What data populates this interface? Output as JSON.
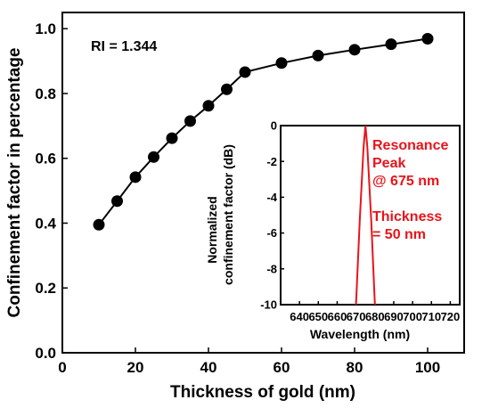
{
  "chart_data": [
    {
      "type": "line",
      "xlabel": "Thickness of gold (nm)",
      "ylabel": "Confinement factor in percentage",
      "xlim": [
        0,
        110
      ],
      "ylim": [
        0.0,
        1.05
      ],
      "xticks": [
        0,
        20,
        40,
        60,
        80,
        100
      ],
      "yticks": [
        0.0,
        0.2,
        0.4,
        0.6,
        0.8,
        1.0
      ],
      "xtick_labels": [
        "0",
        "20",
        "40",
        "60",
        "80",
        "100"
      ],
      "ytick_labels": [
        "0.0",
        "0.2",
        "0.4",
        "0.6",
        "0.8",
        "1.0"
      ],
      "annotation": "RI = 1.344",
      "series": [
        {
          "color": "#000000",
          "marker": "circle",
          "x": [
            10,
            15,
            20,
            25,
            30,
            35,
            40,
            45,
            50,
            60,
            70,
            80,
            90,
            100
          ],
          "y": [
            0.395,
            0.468,
            0.542,
            0.604,
            0.662,
            0.715,
            0.762,
            0.813,
            0.866,
            0.894,
            0.917,
            0.935,
            0.952,
            0.969
          ]
        }
      ]
    },
    {
      "type": "line",
      "xlabel": "Wavelength (nm)",
      "ylabel_lines": [
        "Normalized",
        "confinement factor (dB)"
      ],
      "xlim": [
        630,
        725
      ],
      "ylim": [
        -10,
        0
      ],
      "xticks": [
        640,
        650,
        660,
        670,
        680,
        690,
        700,
        710,
        720
      ],
      "yticks": [
        0,
        -2,
        -4,
        -6,
        -8,
        -10
      ],
      "xtick_labels": [
        "640",
        "650",
        "660",
        "670",
        "680",
        "690",
        "700",
        "710",
        "720"
      ],
      "ytick_labels": [
        "0",
        "-2",
        "-4",
        "-6",
        "-8",
        "-10"
      ],
      "annotations": [
        "Resonance",
        "Peak",
        "@ 675 nm",
        "Thickness",
        "= 50 nm"
      ],
      "annotation_color": "#e8141b",
      "series": [
        {
          "color": "#e8141b",
          "x": [
            670,
            672,
            674,
            675,
            676,
            678,
            680
          ],
          "y": [
            -10,
            -5.2,
            -1.2,
            0,
            -1.2,
            -5.2,
            -10
          ]
        }
      ]
    }
  ]
}
